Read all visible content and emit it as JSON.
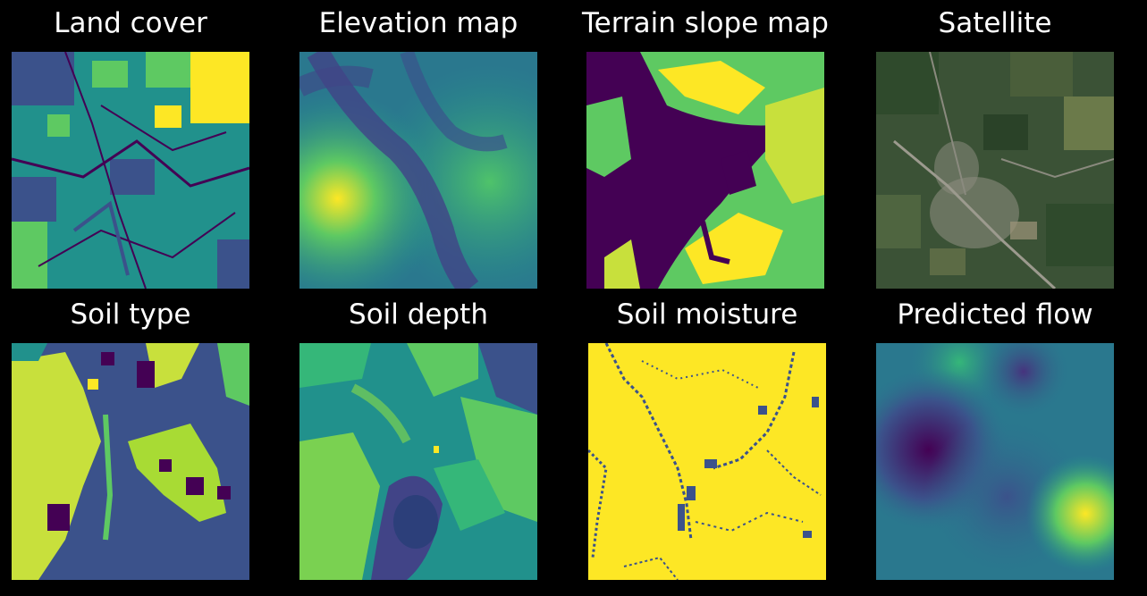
{
  "panels": [
    {
      "title": "Land cover",
      "colormap": "viridis",
      "image": "land-cover-map"
    },
    {
      "title": "Elevation map",
      "colormap": "viridis",
      "image": "elevation-map"
    },
    {
      "title": "Terrain slope map",
      "colormap": "viridis",
      "image": "terrain-slope-map"
    },
    {
      "title": "Satellite",
      "colormap": "rgb",
      "image": "satellite-photo"
    },
    {
      "title": "Soil type",
      "colormap": "viridis",
      "image": "soil-type-map"
    },
    {
      "title": "Soil depth",
      "colormap": "viridis",
      "image": "soil-depth-map"
    },
    {
      "title": "Soil moisture",
      "colormap": "viridis",
      "image": "soil-moisture-map"
    },
    {
      "title": "Predicted flow",
      "colormap": "viridis",
      "image": "predicted-flow-map"
    }
  ],
  "colors": {
    "background": "#000000",
    "title_text": "#ffffff",
    "viridis_dark": "#440154",
    "viridis_blue": "#3b528b",
    "viridis_teal": "#21918c",
    "viridis_green": "#5ec962",
    "viridis_yellow": "#fde725",
    "satellite_forest": "#2f4a2c",
    "satellite_field": "#6b7a4a",
    "satellite_urban": "#8a8a7e"
  }
}
